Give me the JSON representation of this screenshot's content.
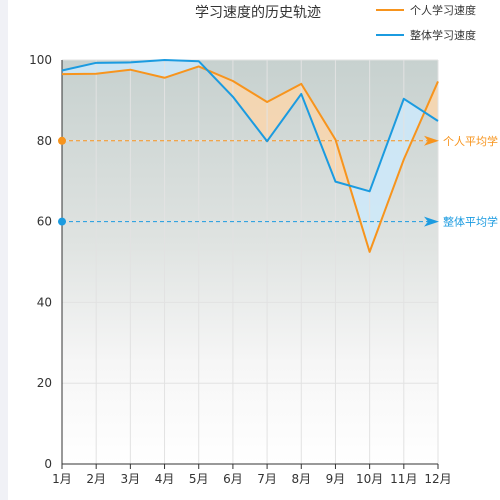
{
  "chart_data": {
    "type": "line",
    "title": "学习速度的历史轨迹",
    "categories": [
      "1月",
      "2月",
      "3月",
      "4月",
      "5月",
      "6月",
      "7月",
      "8月",
      "9月",
      "10月",
      "11月",
      "12月"
    ],
    "series": [
      {
        "name": "个人学习速度",
        "color": "#f7941d",
        "values": [
          96.5,
          96.6,
          97.6,
          95.6,
          98.4,
          94.8,
          89.6,
          94.1,
          80.3,
          52.5,
          75.4,
          94.7
        ]
      },
      {
        "name": "整体学习速度",
        "color": "#1b9be0",
        "values": [
          97.4,
          99.3,
          99.4,
          100.0,
          99.7,
          90.9,
          79.9,
          91.6,
          69.9,
          67.5,
          90.4,
          84.9
        ]
      }
    ],
    "reference_lines": [
      {
        "label": "个人平均学",
        "value": 80,
        "color": "#f7941d"
      },
      {
        "label": "整体平均学",
        "value": 60,
        "color": "#1b9be0"
      }
    ],
    "ylim": [
      0,
      100
    ],
    "yticks": [
      0,
      20,
      40,
      60,
      80,
      100
    ],
    "grid": true,
    "legend_position": "top-right"
  }
}
